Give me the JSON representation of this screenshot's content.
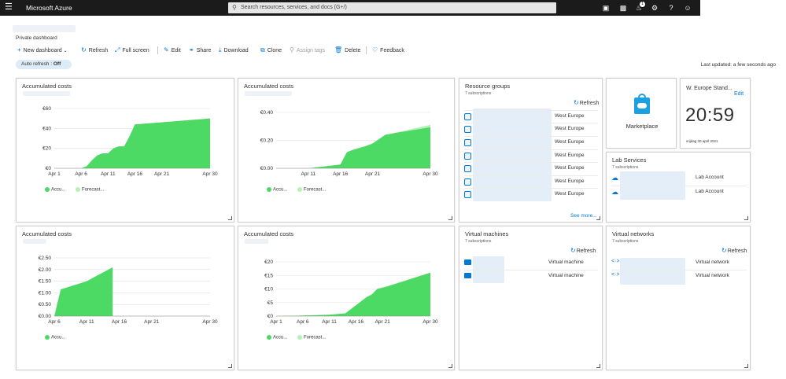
{
  "topbar": {
    "menu_icon": "hamburger-icon",
    "brand": "Microsoft Azure",
    "search_placeholder": "Search resources, services, and docs (G+/)",
    "notification_count": "1",
    "icons": [
      "cloud-shell-icon",
      "directory-filter-icon",
      "notifications-icon",
      "settings-icon",
      "help-icon",
      "feedback-smiley-icon"
    ]
  },
  "dashboard": {
    "subtitle": "Private dashboard",
    "auto_refresh_label": "Auto refresh :",
    "auto_refresh_value": "Off",
    "last_updated": "Last updated: a few seconds ago"
  },
  "toolbar": {
    "new_dashboard": "New dashboard",
    "refresh": "Refresh",
    "full_screen": "Full screen",
    "edit": "Edit",
    "share": "Share",
    "download": "Download",
    "clone": "Clone",
    "assign_tags": "Assign tags",
    "delete": "Delete",
    "feedback": "Feedback"
  },
  "colors": {
    "accent": "#0078d4",
    "actual": "#4cd964",
    "forecast": "#b6f0b8",
    "topbar": "#1b1b1b"
  },
  "tiles": {
    "cost1": {
      "title": "Accumulated costs",
      "legend_actual": "Accu...",
      "legend_forecast": "Forecast..."
    },
    "cost2": {
      "title": "Accumulated costs",
      "legend_actual": "Accu...",
      "legend_forecast": "Forecast..."
    },
    "cost3": {
      "title": "Accumulated costs",
      "legend_actual": "Accu..."
    },
    "cost4": {
      "title": "Accumulated costs",
      "legend_actual": "Accu...",
      "legend_forecast": "Forecast..."
    },
    "resource_groups": {
      "title": "Resource groups",
      "subtitle": "7 subscriptions",
      "refresh": "Refresh",
      "rows": [
        "West Europe",
        "West Europe",
        "West Europe",
        "West Europe",
        "West Europe",
        "West Europe",
        "West Europe"
      ],
      "see_more": "See more..."
    },
    "marketplace": {
      "label": "Marketplace"
    },
    "clock": {
      "title": "W. Europe Stand...",
      "edit": "Edit",
      "time": "20:59",
      "date": "vrijdag 30 april 2021"
    },
    "lab_services": {
      "title": "Lab Services",
      "subtitle": "7 subscriptions",
      "rows": [
        "Lab Account",
        "Lab Account"
      ]
    },
    "virtual_machines": {
      "title": "Virtual machines",
      "subtitle": "7 subscriptions",
      "refresh": "Refresh",
      "rows": [
        "Virtual machine",
        "Virtual machine"
      ]
    },
    "virtual_networks": {
      "title": "Virtual networks",
      "subtitle": "7 subscriptions",
      "refresh": "Refresh",
      "rows": [
        "Virtual network",
        "Virtual network"
      ]
    }
  },
  "chart_data": [
    {
      "type": "area",
      "title": "Accumulated costs",
      "ylim": [
        0,
        60
      ],
      "yticks": [
        "€60",
        "€40",
        "€20",
        "€0"
      ],
      "xticks": [
        "Apr 1",
        "Apr 6",
        "Apr 11",
        "Apr 16",
        "Apr 21",
        "Apr 30"
      ],
      "series": [
        {
          "name": "Accu...",
          "x": [
            1,
            6,
            7,
            8,
            9,
            10,
            11,
            12,
            13,
            14,
            15,
            16,
            30
          ],
          "y": [
            0,
            0,
            2,
            8,
            13,
            15,
            15,
            20,
            22,
            22,
            32,
            44,
            50
          ]
        },
        {
          "name": "Forecast...",
          "x": [
            16,
            30
          ],
          "y": [
            44,
            50
          ]
        }
      ]
    },
    {
      "type": "area",
      "title": "Accumulated costs",
      "ylim": [
        0,
        0.45
      ],
      "yticks": [
        "€0.40",
        "€0.20",
        "€0.00"
      ],
      "xticks": [
        "Apr 11",
        "Apr 16",
        "Apr 21",
        "Apr 30"
      ],
      "series": [
        {
          "name": "Accu...",
          "x": [
            6,
            11,
            16,
            17,
            18,
            20,
            21,
            23,
            24,
            30
          ],
          "y": [
            0,
            0,
            0.03,
            0.13,
            0.15,
            0.18,
            0.2,
            0.27,
            0.28,
            0.33
          ]
        },
        {
          "name": "Forecast...",
          "x": [
            24,
            30
          ],
          "y": [
            0.28,
            0.35
          ]
        }
      ]
    },
    {
      "type": "area",
      "title": "Accumulated costs",
      "ylim": [
        0,
        2.5
      ],
      "yticks": [
        "€2.50",
        "€2.00",
        "€1.50",
        "€1.00",
        "€0.50",
        "€0.00"
      ],
      "xticks": [
        "Apr 6",
        "Apr 11",
        "Apr 16",
        "Apr 21",
        "Apr 30"
      ],
      "series": [
        {
          "name": "Accu...",
          "x": [
            6,
            7,
            11,
            15
          ],
          "y": [
            0,
            1.15,
            1.5,
            2.1
          ]
        }
      ]
    },
    {
      "type": "area",
      "title": "Accumulated costs",
      "ylim": [
        0,
        20
      ],
      "yticks": [
        "€20",
        "€15",
        "€10",
        "€5",
        "€0"
      ],
      "xticks": [
        "Apr 1",
        "Apr 6",
        "Apr 11",
        "Apr 16",
        "Apr 21",
        "Apr 30"
      ],
      "series": [
        {
          "name": "Accu...",
          "x": [
            1,
            6,
            11,
            14,
            16,
            18,
            19,
            20,
            22,
            30
          ],
          "y": [
            0,
            0.2,
            0.5,
            1,
            4,
            7,
            8,
            10,
            11,
            16
          ]
        },
        {
          "name": "Forecast...",
          "x": [
            22,
            30
          ],
          "y": [
            11,
            16
          ]
        }
      ]
    }
  ]
}
